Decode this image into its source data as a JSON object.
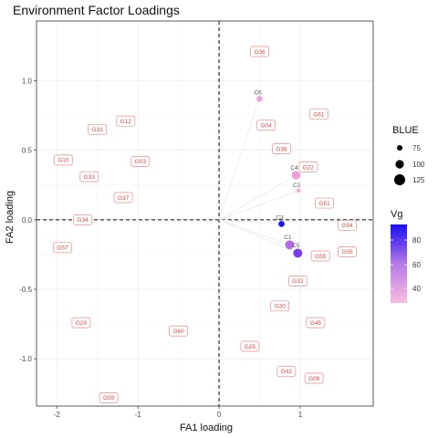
{
  "chart_data": {
    "type": "scatter",
    "title": "Environment Factor Loadings",
    "xlabel": "FA1 loading",
    "ylabel": "FA2 loading",
    "xlim": [
      -2.25,
      1.9
    ],
    "ylim": [
      -1.34,
      1.43
    ],
    "x_ticks": [
      -2,
      -1,
      0,
      1
    ],
    "y_ticks": [
      1.0,
      0.5,
      0.0,
      -0.5,
      -1.0
    ],
    "x_tick_labels": [
      "-2",
      "-1",
      "0",
      "1"
    ],
    "y_tick_labels": [
      "1.0",
      "0.5",
      "0.0",
      "-0.5",
      "-1.0"
    ],
    "grid": true,
    "reference_lines": {
      "x": 0,
      "y": 0,
      "style": "dashed"
    },
    "environments": [
      {
        "name": "C6",
        "x": 0.5,
        "y": 0.87,
        "blue": 80,
        "vg": 35,
        "color": "#f0a3d6"
      },
      {
        "name": "C4",
        "x": 0.95,
        "y": 0.32,
        "blue": 110,
        "vg": 35,
        "color": "#ee9fd8"
      },
      {
        "name": "C2",
        "x": 0.98,
        "y": 0.21,
        "blue": 60,
        "vg": 30,
        "color": "#f5b0d8"
      },
      {
        "name": "C3",
        "x": 0.77,
        "y": -0.03,
        "blue": 80,
        "vg": 92,
        "color": "#1f10f2"
      },
      {
        "name": "C1",
        "x": 0.87,
        "y": -0.18,
        "blue": 115,
        "vg": 55,
        "color": "#b06ce6"
      },
      {
        "name": "C5",
        "x": 0.97,
        "y": -0.24,
        "blue": 115,
        "vg": 80,
        "color": "#7a3af0"
      }
    ],
    "genotypes": [
      {
        "name": "G36",
        "x": 0.5,
        "y": 1.21
      },
      {
        "name": "G61",
        "x": 1.23,
        "y": 0.76
      },
      {
        "name": "G04",
        "x": 0.58,
        "y": 0.68
      },
      {
        "name": "G38",
        "x": 0.77,
        "y": 0.51
      },
      {
        "name": "G22",
        "x": 1.1,
        "y": 0.38
      },
      {
        "name": "G51",
        "x": 1.3,
        "y": 0.12
      },
      {
        "name": "G54",
        "x": 1.58,
        "y": -0.04
      },
      {
        "name": "G05",
        "x": 1.58,
        "y": -0.23
      },
      {
        "name": "G55",
        "x": 1.25,
        "y": -0.26
      },
      {
        "name": "G32",
        "x": 0.97,
        "y": -0.44
      },
      {
        "name": "G30",
        "x": 0.75,
        "y": -0.62
      },
      {
        "name": "G45",
        "x": 1.19,
        "y": -0.74
      },
      {
        "name": "G25",
        "x": 0.38,
        "y": -0.91
      },
      {
        "name": "G42",
        "x": 0.83,
        "y": -1.09
      },
      {
        "name": "G09",
        "x": 1.17,
        "y": -1.14
      },
      {
        "name": "G12",
        "x": -1.15,
        "y": 0.71
      },
      {
        "name": "G31",
        "x": -1.5,
        "y": 0.65
      },
      {
        "name": "G10",
        "x": -1.92,
        "y": 0.43
      },
      {
        "name": "G03",
        "x": -0.97,
        "y": 0.42
      },
      {
        "name": "G33",
        "x": -1.6,
        "y": 0.31
      },
      {
        "name": "G37",
        "x": -1.18,
        "y": 0.16
      },
      {
        "name": "G34",
        "x": -1.68,
        "y": 0.0
      },
      {
        "name": "G57",
        "x": -1.93,
        "y": -0.2
      },
      {
        "name": "G29",
        "x": -1.7,
        "y": -0.74
      },
      {
        "name": "G60",
        "x": -0.5,
        "y": -0.8
      },
      {
        "name": "G59",
        "x": -1.36,
        "y": -1.28
      }
    ],
    "legend": {
      "size": {
        "title": "BLUE",
        "labels": [
          "75",
          "100",
          "125"
        ],
        "values": [
          75,
          100,
          125
        ]
      },
      "color": {
        "title": "Vg",
        "labels": [
          "80",
          "60",
          "40"
        ],
        "values": [
          80,
          60,
          40
        ],
        "range": [
          25,
          95
        ],
        "low_color": "#f9bde0",
        "high_color": "#1a0cf5"
      }
    }
  }
}
